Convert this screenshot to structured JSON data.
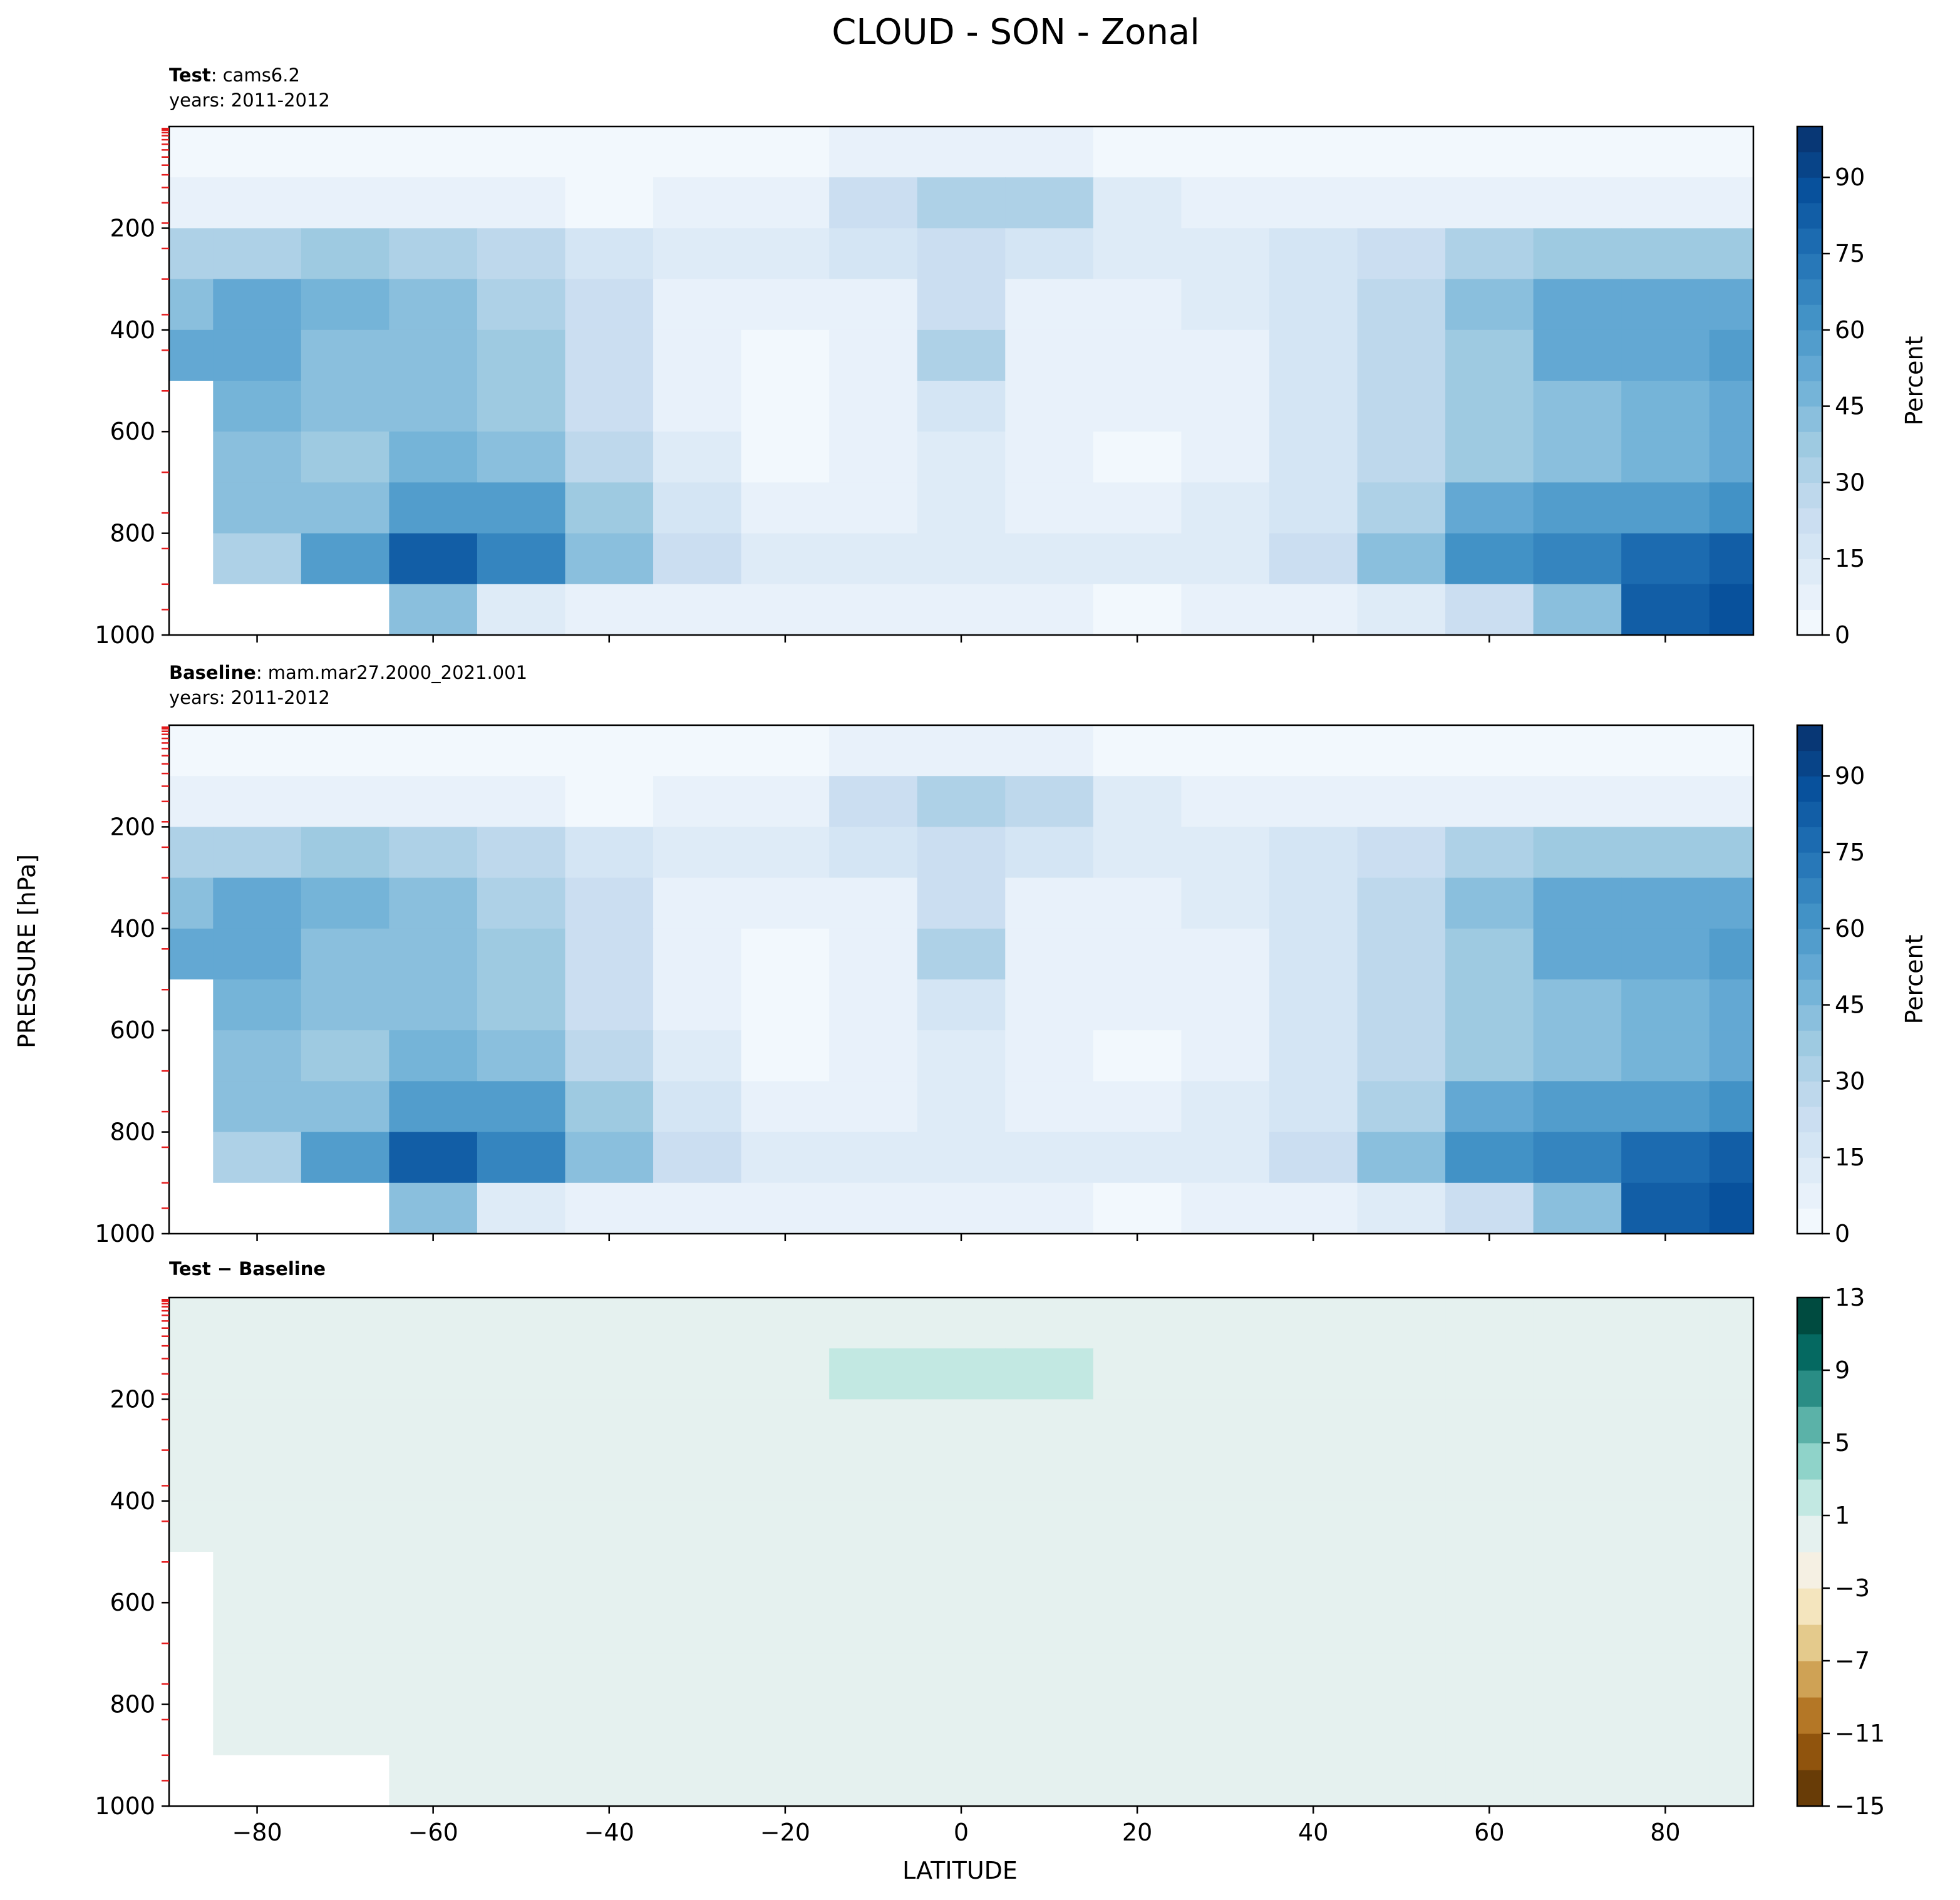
{
  "title": "CLOUD - SON - Zonal",
  "shared_axes": {
    "ylabel": "PRESSURE [hPa]",
    "xlabel": "LATITUDE"
  },
  "chart_data": [
    {
      "type": "heatmap",
      "panel": "test",
      "title_bold": "Test",
      "title_rest": ": cams6.2",
      "subtitle": "years: 2011-2012",
      "xlim": [
        -90,
        90
      ],
      "ylim": [
        1000,
        0
      ],
      "x_ticks": [
        -80,
        -60,
        -40,
        -20,
        0,
        20,
        40,
        60,
        80
      ],
      "y_ticks": [
        200,
        400,
        600,
        800,
        1000
      ],
      "colormap": "Blues",
      "colorbar": {
        "label": "Percent",
        "levels": [
          0,
          5,
          10,
          15,
          20,
          25,
          30,
          35,
          40,
          45,
          50,
          55,
          60,
          65,
          70,
          75,
          80,
          85,
          90,
          95,
          100
        ],
        "ticks": [
          0,
          15,
          30,
          45,
          60,
          75,
          90
        ]
      },
      "latitudes": [
        -90,
        -80,
        -70,
        -60,
        -50,
        -40,
        -30,
        -20,
        -10,
        0,
        10,
        20,
        30,
        40,
        50,
        60,
        70,
        80,
        90
      ],
      "pressures": [
        50,
        150,
        250,
        350,
        450,
        550,
        650,
        750,
        850,
        950
      ],
      "values": [
        [
          2,
          2,
          2,
          2,
          2,
          2,
          2,
          3,
          6,
          8,
          6,
          3,
          2,
          2,
          2,
          2,
          2,
          3,
          3
        ],
        [
          8,
          8,
          7,
          6,
          5,
          4,
          5,
          7,
          24,
          34,
          30,
          12,
          6,
          5,
          5,
          5,
          5,
          7,
          9
        ],
        [
          30,
          34,
          36,
          33,
          27,
          17,
          11,
          11,
          16,
          24,
          17,
          11,
          11,
          16,
          23,
          32,
          36,
          38,
          36
        ],
        [
          44,
          50,
          46,
          42,
          34,
          21,
          9,
          6,
          9,
          22,
          9,
          6,
          11,
          18,
          27,
          40,
          52,
          54,
          54
        ],
        [
          50,
          50,
          44,
          42,
          37,
          20,
          7,
          4,
          7,
          30,
          7,
          6,
          9,
          16,
          26,
          39,
          53,
          54,
          56
        ],
        [
          null,
          45,
          40,
          40,
          37,
          22,
          8,
          4,
          6,
          19,
          6,
          5,
          8,
          15,
          27,
          36,
          44,
          47,
          53
        ],
        [
          null,
          43,
          37,
          45,
          40,
          26,
          12,
          4,
          6,
          14,
          5,
          3,
          8,
          16,
          28,
          38,
          42,
          46,
          50
        ],
        [
          null,
          40,
          40,
          58,
          55,
          38,
          18,
          9,
          8,
          11,
          9,
          7,
          10,
          18,
          32,
          52,
          56,
          58,
          60
        ],
        [
          null,
          30,
          55,
          80,
          65,
          40,
          20,
          12,
          11,
          14,
          12,
          10,
          12,
          24,
          40,
          60,
          68,
          75,
          82
        ],
        [
          null,
          null,
          null,
          40,
          12,
          8,
          6,
          5,
          5,
          6,
          5,
          4,
          5,
          7,
          12,
          20,
          40,
          80,
          88
        ]
      ]
    },
    {
      "type": "heatmap",
      "panel": "baseline",
      "title_bold": "Baseline",
      "title_rest": ": mam.mar27.2000_2021.001",
      "subtitle": "years: 2011-2012",
      "xlim": [
        -90,
        90
      ],
      "ylim": [
        1000,
        0
      ],
      "x_ticks": [
        -80,
        -60,
        -40,
        -20,
        0,
        20,
        40,
        60,
        80
      ],
      "y_ticks": [
        200,
        400,
        600,
        800,
        1000
      ],
      "colormap": "Blues",
      "colorbar": {
        "label": "Percent",
        "levels": [
          0,
          5,
          10,
          15,
          20,
          25,
          30,
          35,
          40,
          45,
          50,
          55,
          60,
          65,
          70,
          75,
          80,
          85,
          90,
          95,
          100
        ],
        "ticks": [
          0,
          15,
          30,
          45,
          60,
          75,
          90
        ]
      },
      "latitudes": [
        -90,
        -80,
        -70,
        -60,
        -50,
        -40,
        -30,
        -20,
        -10,
        0,
        10,
        20,
        30,
        40,
        50,
        60,
        70,
        80,
        90
      ],
      "pressures": [
        50,
        150,
        250,
        350,
        450,
        550,
        650,
        750,
        850,
        950
      ],
      "values": [
        [
          2,
          2,
          2,
          2,
          2,
          2,
          2,
          3,
          6,
          8,
          6,
          3,
          2,
          2,
          2,
          2,
          2,
          3,
          3
        ],
        [
          8,
          8,
          7,
          6,
          5,
          4,
          5,
          7,
          22,
          32,
          28,
          12,
          6,
          5,
          5,
          5,
          5,
          7,
          9
        ],
        [
          30,
          34,
          36,
          33,
          27,
          17,
          11,
          11,
          16,
          23,
          17,
          11,
          11,
          16,
          23,
          32,
          36,
          38,
          36
        ],
        [
          44,
          50,
          46,
          42,
          34,
          21,
          9,
          6,
          9,
          22,
          9,
          6,
          11,
          18,
          27,
          40,
          52,
          54,
          54
        ],
        [
          50,
          50,
          44,
          42,
          37,
          20,
          7,
          4,
          7,
          30,
          7,
          6,
          9,
          16,
          26,
          39,
          53,
          54,
          56
        ],
        [
          null,
          45,
          40,
          40,
          37,
          22,
          8,
          4,
          6,
          19,
          6,
          5,
          8,
          15,
          27,
          36,
          44,
          47,
          53
        ],
        [
          null,
          43,
          37,
          45,
          40,
          26,
          12,
          4,
          6,
          14,
          5,
          3,
          8,
          16,
          28,
          38,
          42,
          46,
          50
        ],
        [
          null,
          40,
          40,
          58,
          55,
          38,
          18,
          9,
          8,
          11,
          9,
          7,
          10,
          18,
          32,
          52,
          56,
          58,
          60
        ],
        [
          null,
          30,
          55,
          80,
          65,
          40,
          20,
          12,
          11,
          14,
          12,
          10,
          12,
          24,
          40,
          60,
          68,
          75,
          82
        ],
        [
          null,
          null,
          null,
          40,
          12,
          8,
          6,
          5,
          5,
          6,
          5,
          4,
          5,
          7,
          12,
          20,
          40,
          80,
          88
        ]
      ]
    },
    {
      "type": "heatmap",
      "panel": "difference",
      "title_bold": "Test − Baseline",
      "title_rest": "",
      "subtitle": "",
      "xlim": [
        -90,
        90
      ],
      "ylim": [
        1000,
        0
      ],
      "x_ticks": [
        -80,
        -60,
        -40,
        -20,
        0,
        20,
        40,
        60,
        80
      ],
      "y_ticks": [
        200,
        400,
        600,
        800,
        1000
      ],
      "colormap": "BrBG",
      "colorbar": {
        "label": "",
        "levels": [
          -15,
          -13,
          -11,
          -9,
          -7,
          -5,
          -3,
          -1,
          1,
          3,
          5,
          7,
          9,
          11,
          13
        ],
        "ticks": [
          -15,
          -11,
          -7,
          -3,
          1,
          5,
          9,
          13
        ]
      },
      "latitudes": [
        -90,
        -80,
        -70,
        -60,
        -50,
        -40,
        -30,
        -20,
        -10,
        0,
        10,
        20,
        30,
        40,
        50,
        60,
        70,
        80,
        90
      ],
      "pressures": [
        50,
        150,
        250,
        350,
        450,
        550,
        650,
        750,
        850,
        950
      ],
      "values": [
        [
          0,
          0,
          0,
          0,
          0,
          0,
          0,
          0,
          0,
          0,
          0,
          0,
          0,
          0,
          0,
          0,
          0,
          0,
          0
        ],
        [
          0,
          0,
          0,
          0,
          0,
          0,
          0,
          0,
          1.5,
          2,
          1.8,
          0,
          0,
          0,
          0,
          0,
          0,
          0,
          0
        ],
        [
          0,
          0,
          0,
          0,
          0,
          0,
          0,
          0,
          0,
          0.5,
          0,
          0,
          0,
          0,
          0,
          0,
          0,
          0,
          0
        ],
        [
          0,
          0,
          0,
          0,
          0,
          0,
          0,
          0,
          0,
          0,
          0,
          0,
          0,
          0,
          0,
          0,
          0,
          0,
          0
        ],
        [
          0,
          0,
          0,
          0,
          0,
          0,
          0,
          0,
          0,
          0,
          0,
          0,
          0,
          0,
          0,
          0,
          0,
          0,
          0
        ],
        [
          null,
          0,
          0,
          0,
          0,
          0,
          0,
          0,
          0,
          0,
          0,
          0,
          0,
          0,
          0,
          0,
          0,
          0,
          0
        ],
        [
          null,
          0,
          0,
          0,
          0,
          0,
          0,
          0,
          0,
          0,
          0,
          0,
          0,
          0,
          0,
          0,
          0,
          0,
          0
        ],
        [
          null,
          0,
          0,
          0,
          0,
          0,
          0,
          0,
          0,
          0,
          0,
          0,
          0,
          0,
          0,
          0,
          0,
          0,
          0
        ],
        [
          null,
          0,
          0,
          0,
          0,
          0,
          0,
          0,
          0,
          0,
          0,
          0,
          0,
          0,
          0,
          0,
          0,
          0,
          0
        ],
        [
          null,
          null,
          null,
          0,
          0,
          0,
          0,
          0,
          0,
          0,
          0,
          0,
          0,
          0,
          0,
          0,
          0,
          0,
          0
        ]
      ]
    }
  ]
}
